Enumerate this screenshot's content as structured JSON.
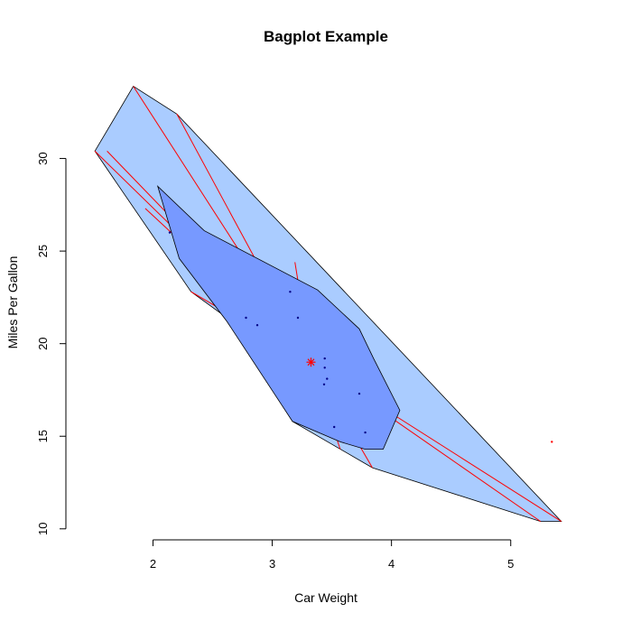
{
  "chart_data": {
    "type": "scatter",
    "subtype": "bagplot",
    "title": "Bagplot Example",
    "xlabel": "Car Weight",
    "ylabel": "Miles Per Gallon",
    "xlim": [
      1.3,
      5.6
    ],
    "ylim": [
      9.6,
      35.0
    ],
    "xticks": [
      2,
      3,
      4,
      5
    ],
    "yticks": [
      10,
      15,
      20,
      25,
      30
    ],
    "colors": {
      "loop": "#aaccff",
      "bag": "#7799ff",
      "outline": "#000000",
      "whisker": "#ff0000",
      "center": "#ff0000",
      "bag_points": "#000088",
      "outlier": "#ff0000"
    },
    "loop_hull": [
      [
        1.513,
        30.4
      ],
      [
        1.835,
        33.9
      ],
      [
        2.2,
        32.4
      ],
      [
        5.424,
        10.4
      ],
      [
        5.25,
        10.4
      ],
      [
        3.84,
        13.3
      ],
      [
        3.17,
        15.8
      ],
      [
        2.62,
        21.4
      ],
      [
        2.32,
        22.8
      ]
    ],
    "bag_hull": [
      [
        2.04,
        28.5
      ],
      [
        2.22,
        24.6
      ],
      [
        2.62,
        21.2
      ],
      [
        3.17,
        15.8
      ],
      [
        3.57,
        14.7
      ],
      [
        3.78,
        14.3
      ],
      [
        3.93,
        14.3
      ],
      [
        4.07,
        16.4
      ],
      [
        3.85,
        19.2
      ],
      [
        3.73,
        20.8
      ],
      [
        3.38,
        22.9
      ],
      [
        2.43,
        26.1
      ]
    ],
    "center": [
      3.325,
      19.0
    ],
    "bag_points": [
      [
        2.78,
        21.4
      ],
      [
        2.875,
        21.0
      ],
      [
        3.15,
        22.8
      ],
      [
        3.215,
        21.4
      ],
      [
        3.44,
        19.2
      ],
      [
        3.44,
        18.7
      ],
      [
        3.46,
        18.1
      ],
      [
        3.435,
        17.8
      ],
      [
        3.73,
        17.3
      ],
      [
        3.52,
        15.5
      ],
      [
        3.78,
        15.2
      ],
      [
        2.14,
        26.0
      ]
    ],
    "loop_points": [
      [
        1.513,
        30.4
      ],
      [
        1.615,
        30.4
      ],
      [
        1.835,
        33.9
      ],
      [
        2.2,
        32.4
      ],
      [
        1.935,
        27.3
      ],
      [
        2.32,
        22.8
      ],
      [
        2.62,
        21.4
      ],
      [
        3.19,
        24.4
      ],
      [
        3.44,
        15.2
      ],
      [
        3.57,
        14.3
      ],
      [
        3.84,
        13.3
      ],
      [
        5.25,
        10.4
      ],
      [
        5.424,
        10.4
      ]
    ],
    "outliers": [
      [
        5.345,
        14.7
      ]
    ]
  }
}
